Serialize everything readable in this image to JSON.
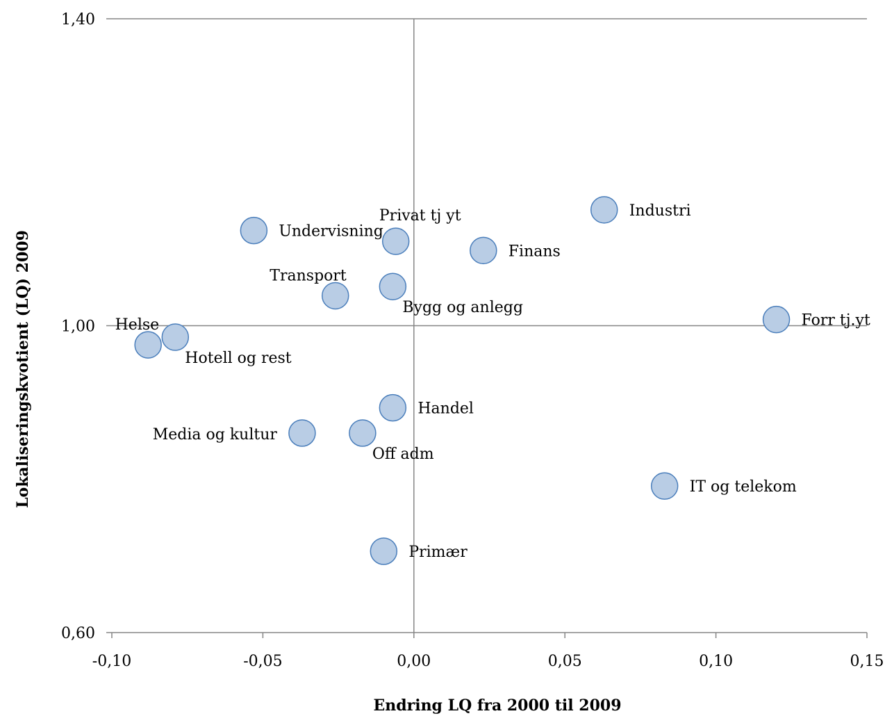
{
  "chart_data": {
    "type": "scatter",
    "title": "",
    "xlabel": "Endring LQ fra 2000 til 2009",
    "ylabel": "Lokaliseringskvotient (LQ) 2009",
    "xlim": [
      -0.1,
      0.15
    ],
    "ylim": [
      0.6,
      1.4
    ],
    "x_ticks": [
      "-0,10",
      "-0,05",
      "0,00",
      "0,05",
      "0,10",
      "0,15"
    ],
    "x_tick_values": [
      -0.1,
      -0.05,
      0.0,
      0.05,
      0.1,
      0.15
    ],
    "y_ticks": [
      "0,60",
      "1,00",
      "1,40"
    ],
    "y_tick_values": [
      0.6,
      1.0,
      1.4
    ],
    "grid": false,
    "legend": "none",
    "marker_fill": "#b9cde5",
    "marker_edge": "#4a7ebb",
    "points": [
      {
        "label": "Industri",
        "x": 0.063,
        "y": 1.151,
        "label_pos": "right"
      },
      {
        "label": "Privat tj yt",
        "x": -0.006,
        "y": 1.11,
        "label_pos": "above"
      },
      {
        "label": "Undervisning",
        "x": -0.053,
        "y": 1.124,
        "label_pos": "right"
      },
      {
        "label": "Finans",
        "x": 0.023,
        "y": 1.098,
        "label_pos": "right"
      },
      {
        "label": "Transport",
        "x": -0.026,
        "y": 1.039,
        "label_pos": "above-left"
      },
      {
        "label": "Bygg og anlegg",
        "x": -0.007,
        "y": 1.051,
        "label_pos": "below-right"
      },
      {
        "label": "Forr tj.yt",
        "x": 0.12,
        "y": 1.008,
        "label_pos": "right"
      },
      {
        "label": "Helse",
        "x": -0.088,
        "y": 0.975,
        "label_pos": "above-left"
      },
      {
        "label": "Hotell og rest",
        "x": -0.079,
        "y": 0.985,
        "label_pos": "below-right"
      },
      {
        "label": "Handel",
        "x": -0.007,
        "y": 0.893,
        "label_pos": "right"
      },
      {
        "label": "Media og kultur",
        "x": -0.037,
        "y": 0.86,
        "label_pos": "left"
      },
      {
        "label": "Off adm",
        "x": -0.017,
        "y": 0.86,
        "label_pos": "below-right"
      },
      {
        "label": "IT og telekom",
        "x": 0.083,
        "y": 0.791,
        "label_pos": "right"
      },
      {
        "label": "Primær",
        "x": -0.01,
        "y": 0.706,
        "label_pos": "right"
      }
    ]
  }
}
